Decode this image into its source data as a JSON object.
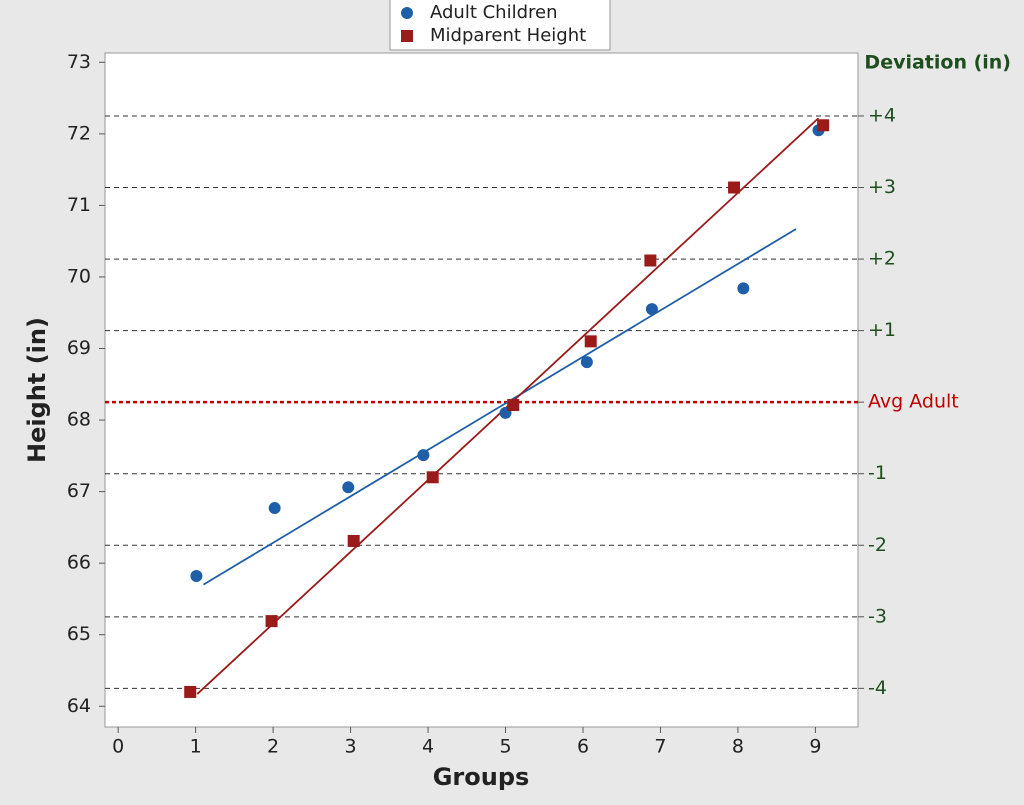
{
  "chart_data": {
    "type": "scatter",
    "x_label": "Groups",
    "y_label": "Height (in)",
    "y2_label": "Deviation (in)",
    "xlim": [
      -0.17,
      9.55
    ],
    "xticks": [
      0,
      1,
      2,
      3,
      4,
      5,
      6,
      7,
      8,
      9
    ],
    "ylim": [
      63.71,
      73.13
    ],
    "yticks": [
      64,
      65,
      66,
      67,
      68,
      69,
      70,
      71,
      72,
      73
    ],
    "y2lim": [
      -4.54,
      4.88
    ],
    "y2ticks": [
      {
        "value": 4,
        "label": "+4"
      },
      {
        "value": 3,
        "label": "+3"
      },
      {
        "value": 2,
        "label": "+2"
      },
      {
        "value": 1,
        "label": "+1"
      },
      {
        "value": 0,
        "label": "Avg Adult"
      },
      -1,
      -2,
      -3,
      -4
    ],
    "y2_zero_color": "#c00000",
    "y2_color": "#1e4d1e",
    "y2_grid": true,
    "series": [
      {
        "name": "Adult Children",
        "color": "#1f5fa8",
        "marker": "circle",
        "x": [
          1.01,
          2.02,
          2.97,
          3.94,
          5.0,
          6.05,
          6.89,
          8.07,
          9.04
        ],
        "values": [
          65.82,
          66.77,
          67.06,
          67.51,
          68.1,
          68.81,
          69.55,
          69.84,
          72.05
        ],
        "fit": {
          "x": [
            1.1,
            8.75
          ],
          "values": [
            65.7,
            70.67
          ]
        }
      },
      {
        "name": "Midparent Height",
        "color": "#9b1b1b",
        "marker": "square",
        "x": [
          0.93,
          1.98,
          3.04,
          4.06,
          5.1,
          6.1,
          6.87,
          7.95,
          9.1
        ],
        "values": [
          64.2,
          65.19,
          66.31,
          67.2,
          68.21,
          69.1,
          70.23,
          71.25,
          72.12
        ],
        "fit": {
          "x": [
            1.02,
            9.04
          ],
          "values": [
            64.17,
            72.22
          ]
        }
      }
    ]
  }
}
